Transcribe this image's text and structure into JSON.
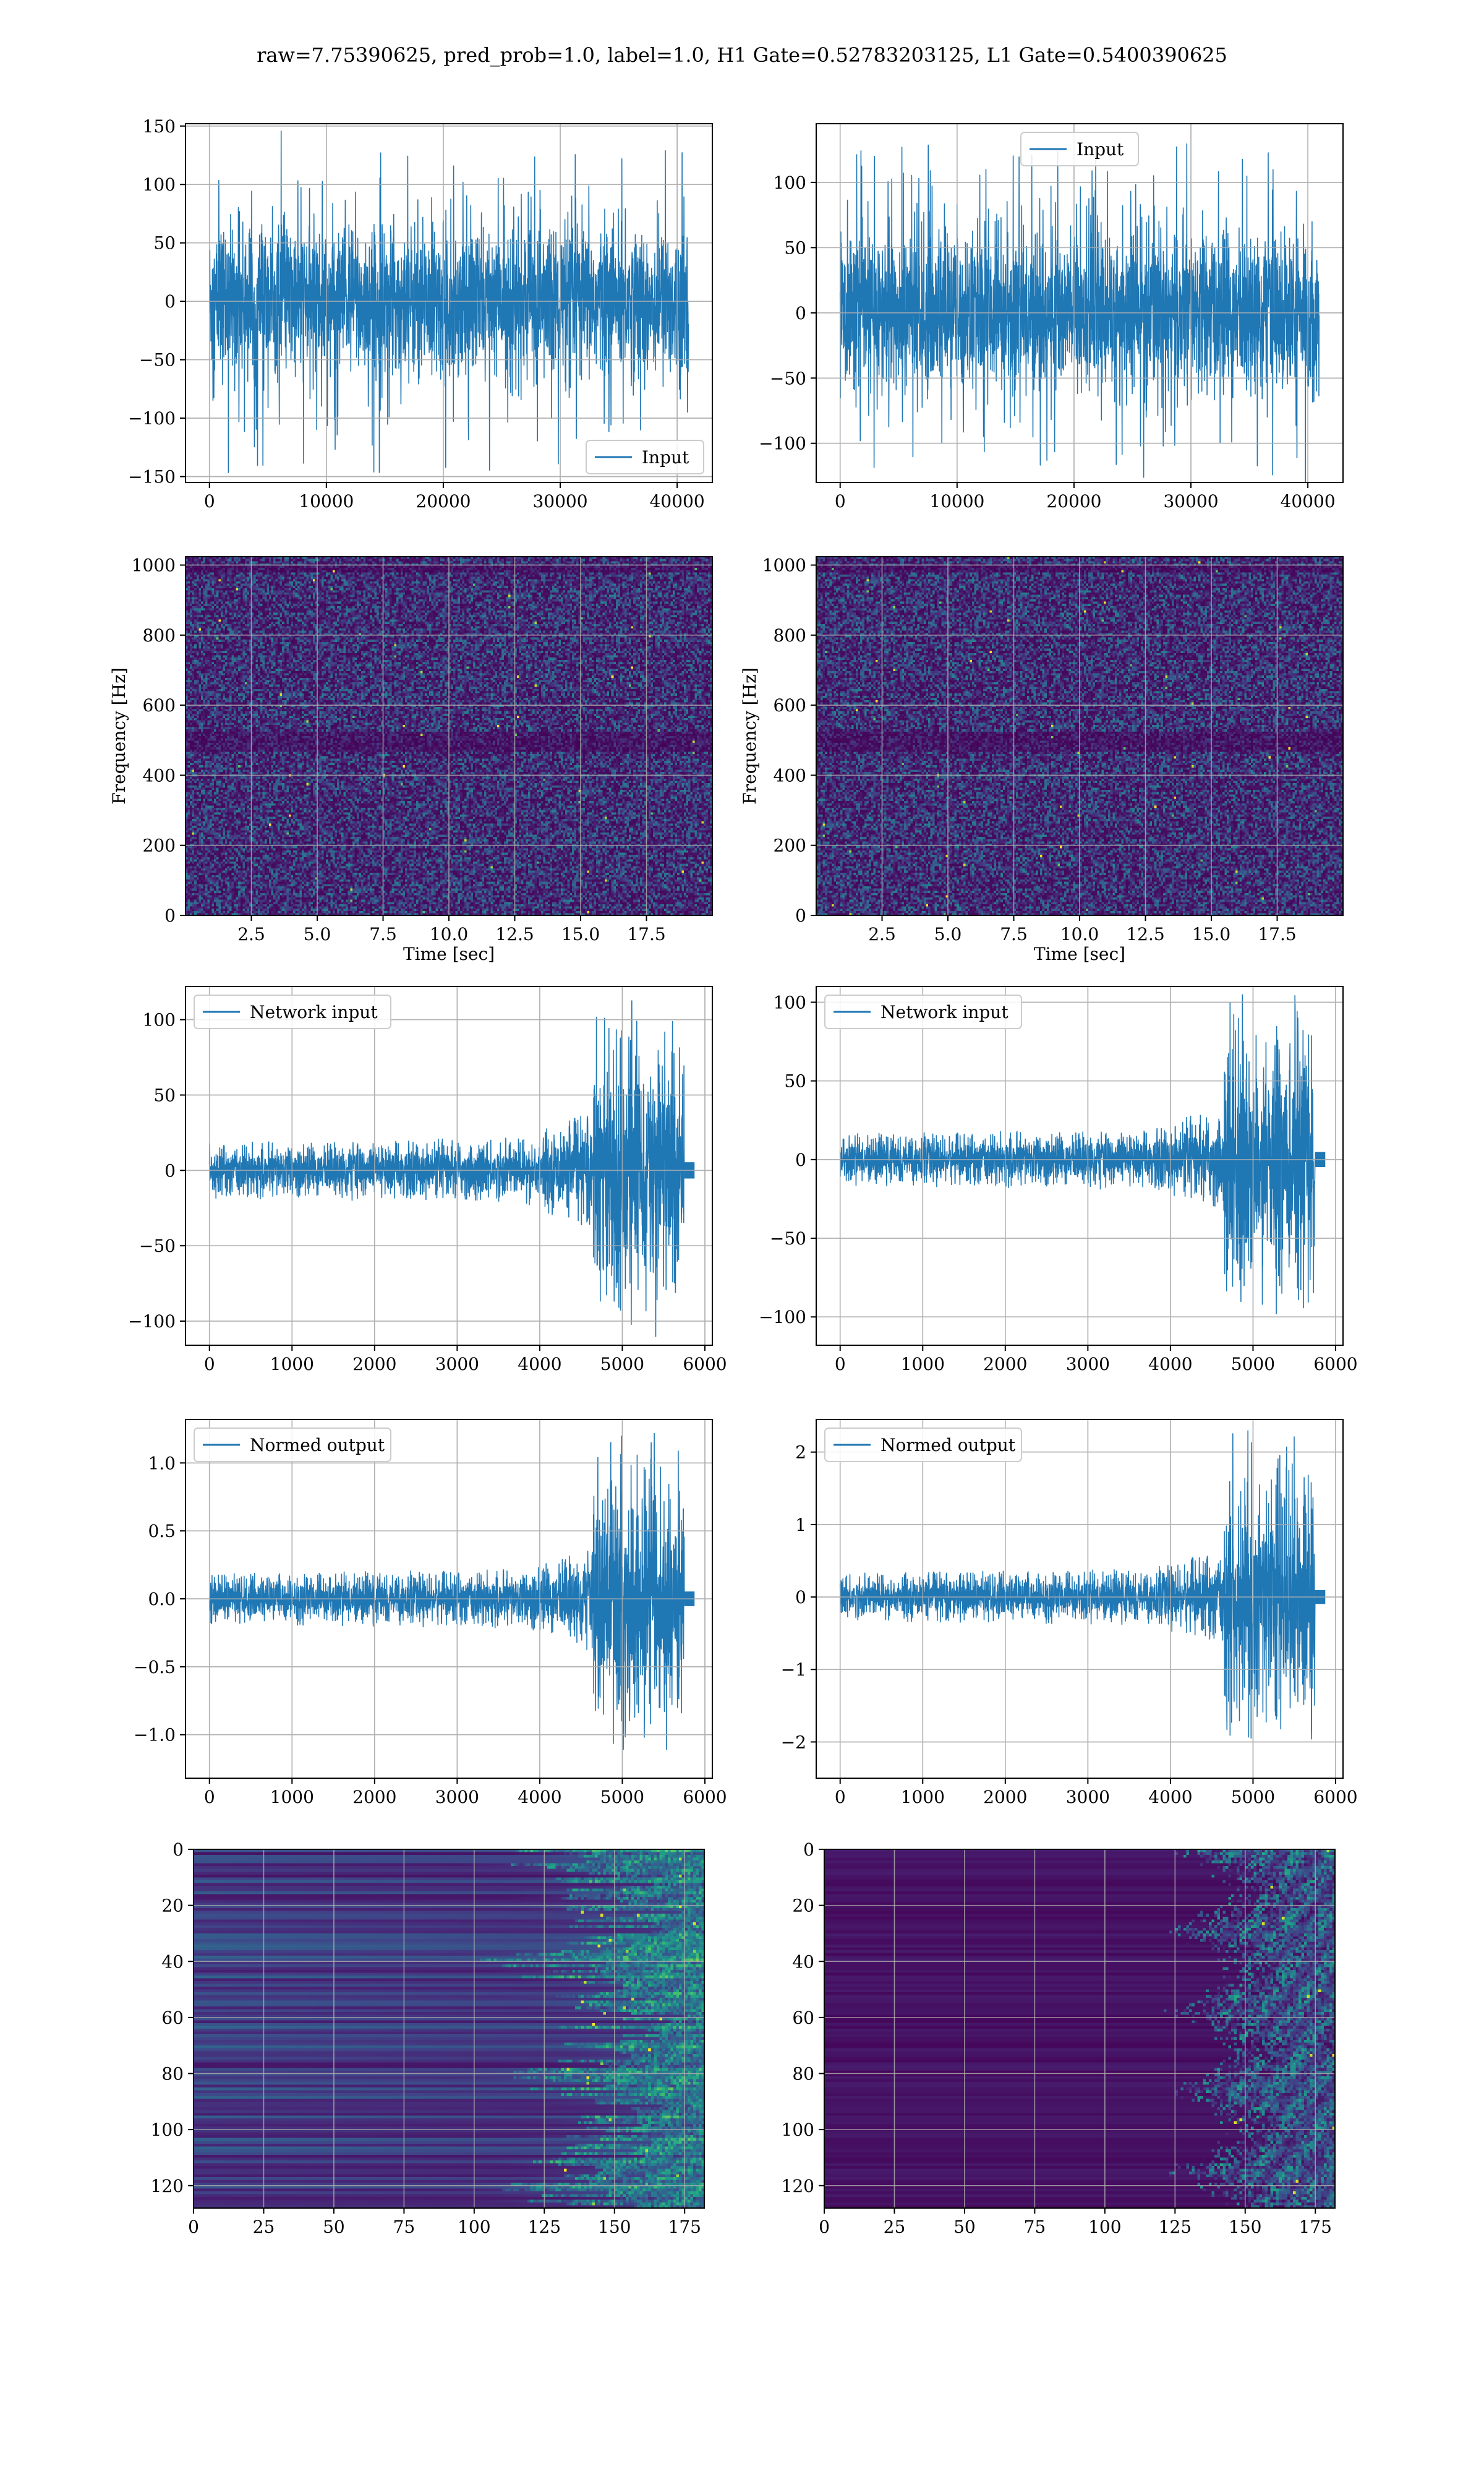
{
  "figure": {
    "suptitle": "raw=7.75390625, pred_prob=1.0, label=1.0, H1 Gate=0.52783203125, L1 Gate=0.5400390625"
  },
  "colors": {
    "line": "#1f77b4",
    "grid": "#b0b0b0",
    "viridis_low": "#440154",
    "viridis_mid": "#21918c",
    "viridis_high": "#fde725"
  },
  "chart_data": [
    {
      "id": "raw-h1",
      "type": "line",
      "signal": "noise",
      "x_range": [
        0,
        40960
      ],
      "xlim": [
        -2048,
        43008
      ],
      "ylim": [
        -155,
        152
      ],
      "xticks": [
        0,
        10000,
        20000,
        30000,
        40000
      ],
      "yticks": [
        -150,
        -100,
        -50,
        0,
        50,
        100,
        150
      ],
      "amplitude_typical": 75,
      "amplitude_peak": 148,
      "legend": [
        "Input"
      ],
      "legend_loc": "lower-right",
      "grid": true
    },
    {
      "id": "raw-l1",
      "type": "line",
      "signal": "noise",
      "x_range": [
        0,
        40960
      ],
      "xlim": [
        -2048,
        43008
      ],
      "ylim": [
        -130,
        145
      ],
      "xticks": [
        0,
        10000,
        20000,
        30000,
        40000
      ],
      "yticks": [
        -100,
        -50,
        0,
        50,
        100
      ],
      "amplitude_typical": 70,
      "amplitude_peak": 130,
      "legend": [
        "Input"
      ],
      "legend_loc": "upper-center",
      "grid": true
    },
    {
      "id": "spec-h1",
      "type": "heatmap",
      "colormap": "viridis",
      "xlim": [
        0,
        20
      ],
      "ylim": [
        0,
        1024
      ],
      "xticks": [
        2.5,
        5.0,
        7.5,
        10.0,
        12.5,
        15.0,
        17.5
      ],
      "yticks": [
        0,
        200,
        400,
        600,
        800,
        1000
      ],
      "xlabel": "Time [sec]",
      "ylabel": "Frequency [Hz]",
      "grid": true
    },
    {
      "id": "spec-l1",
      "type": "heatmap",
      "colormap": "viridis",
      "xlim": [
        0,
        20
      ],
      "ylim": [
        0,
        1024
      ],
      "xticks": [
        2.5,
        5.0,
        7.5,
        10.0,
        12.5,
        15.0,
        17.5
      ],
      "yticks": [
        0,
        200,
        400,
        600,
        800,
        1000
      ],
      "xlabel": "Time [sec]",
      "ylabel": "Frequency [Hz]",
      "grid": true
    },
    {
      "id": "net-h1",
      "type": "line",
      "signal": "chirp",
      "x_range": [
        0,
        5800
      ],
      "xlim": [
        -290,
        6090
      ],
      "ylim": [
        -116,
        122
      ],
      "xticks": [
        0,
        1000,
        2000,
        3000,
        4000,
        5000,
        6000
      ],
      "yticks": [
        -100,
        -50,
        0,
        50,
        100
      ],
      "base_amplitude": 18,
      "burst_start": 4650,
      "burst_end": 5750,
      "burst_amplitude": 95,
      "legend": [
        "Network input"
      ],
      "legend_loc": "upper-left",
      "grid": true
    },
    {
      "id": "net-l1",
      "type": "line",
      "signal": "chirp",
      "x_range": [
        0,
        5800
      ],
      "xlim": [
        -290,
        6090
      ],
      "ylim": [
        -118,
        110
      ],
      "xticks": [
        0,
        1000,
        2000,
        3000,
        4000,
        5000,
        6000
      ],
      "yticks": [
        -100,
        -50,
        0,
        50,
        100
      ],
      "base_amplitude": 16,
      "burst_start": 4650,
      "burst_end": 5750,
      "burst_amplitude": 90,
      "legend": [
        "Network input"
      ],
      "legend_loc": "upper-left",
      "grid": true
    },
    {
      "id": "norm-h1",
      "type": "line",
      "signal": "chirp",
      "x_range": [
        0,
        5800
      ],
      "xlim": [
        -290,
        6090
      ],
      "ylim": [
        -1.32,
        1.32
      ],
      "xticks": [
        0,
        1000,
        2000,
        3000,
        4000,
        5000,
        6000
      ],
      "yticks": [
        -1.0,
        -0.5,
        0.0,
        0.5,
        1.0
      ],
      "base_amplitude": 0.18,
      "burst_start": 4650,
      "burst_end": 5750,
      "burst_amplitude": 1.1,
      "legend": [
        "Normed output"
      ],
      "legend_loc": "upper-left",
      "grid": true
    },
    {
      "id": "norm-l1",
      "type": "line",
      "signal": "chirp",
      "x_range": [
        0,
        5800
      ],
      "xlim": [
        -290,
        6090
      ],
      "ylim": [
        -2.5,
        2.45
      ],
      "xticks": [
        0,
        1000,
        2000,
        3000,
        4000,
        5000,
        6000
      ],
      "yticks": [
        -2,
        -1,
        0,
        1,
        2
      ],
      "base_amplitude": 0.32,
      "burst_start": 4650,
      "burst_end": 5750,
      "burst_amplitude": 2.0,
      "legend": [
        "Normed output"
      ],
      "legend_loc": "upper-left",
      "grid": true
    },
    {
      "id": "feat-h1",
      "type": "heatmap",
      "colormap": "viridis",
      "xlim": [
        0,
        182
      ],
      "ylim": [
        0,
        128
      ],
      "y_inverted": true,
      "xticks": [
        0,
        25,
        50,
        75,
        100,
        125,
        150,
        175
      ],
      "yticks": [
        0,
        20,
        40,
        60,
        80,
        100,
        120
      ],
      "rows": 128,
      "cols": 182,
      "pattern": "banded",
      "grid": true
    },
    {
      "id": "feat-l1",
      "type": "heatmap",
      "colormap": "viridis",
      "xlim": [
        0,
        182
      ],
      "ylim": [
        0,
        128
      ],
      "y_inverted": true,
      "xticks": [
        0,
        25,
        50,
        75,
        100,
        125,
        150,
        175
      ],
      "yticks": [
        0,
        20,
        40,
        60,
        80,
        100,
        120
      ],
      "rows": 128,
      "cols": 182,
      "pattern": "dark-late-burst",
      "grid": true
    }
  ]
}
